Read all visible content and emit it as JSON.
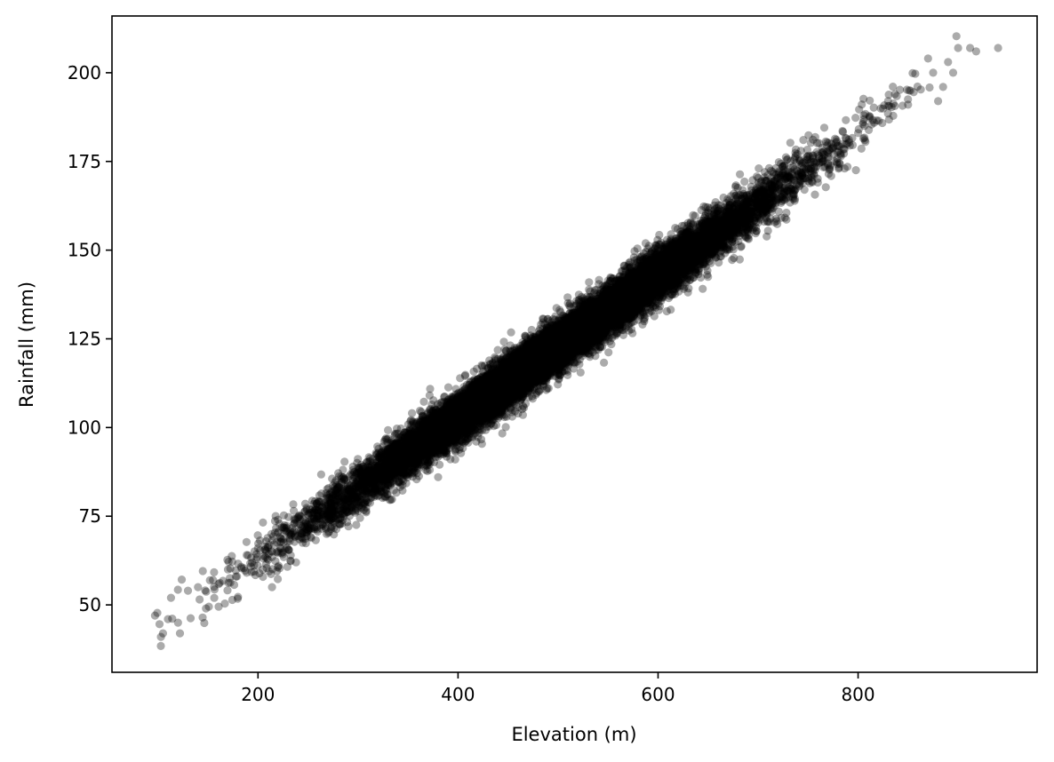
{
  "chart_data": {
    "type": "scatter",
    "title": "",
    "xlabel": "Elevation (m)",
    "ylabel": "Rainfall (mm)",
    "xlim": [
      54,
      979
    ],
    "ylim": [
      31,
      216
    ],
    "xticks": [
      200,
      400,
      600,
      800
    ],
    "yticks": [
      50,
      75,
      100,
      125,
      150,
      175,
      200
    ],
    "grid": false,
    "legend": "none",
    "marker_color": "#000000",
    "marker_opacity": 0.33,
    "series": [
      {
        "trend": {
          "slope": 0.2,
          "intercept": 23,
          "y_spread_sd": 3.5
        },
        "x_distribution": {
          "mean": 500,
          "sd": 110,
          "min": 95,
          "max": 940
        },
        "n_points": 16000,
        "sample_points": [
          [
            97,
            47
          ],
          [
            103,
            41
          ],
          [
            105,
            42
          ],
          [
            110,
            46
          ],
          [
            113,
            52
          ],
          [
            120,
            45
          ],
          [
            122,
            42
          ],
          [
            130,
            54
          ],
          [
            140,
            55
          ],
          [
            148,
            49
          ],
          [
            155,
            57
          ],
          [
            170,
            60
          ],
          [
            190,
            64
          ],
          [
            200,
            66
          ],
          [
            214,
            55
          ],
          [
            220,
            74
          ],
          [
            250,
            71
          ],
          [
            300,
            83
          ],
          [
            350,
            92
          ],
          [
            400,
            103
          ],
          [
            450,
            113
          ],
          [
            500,
            123
          ],
          [
            550,
            133
          ],
          [
            600,
            143
          ],
          [
            650,
            153
          ],
          [
            700,
            163
          ],
          [
            750,
            173
          ],
          [
            800,
            183
          ],
          [
            830,
            192
          ],
          [
            850,
            191
          ],
          [
            870,
            204
          ],
          [
            875,
            200
          ],
          [
            880,
            192
          ],
          [
            885,
            196
          ],
          [
            890,
            203
          ],
          [
            895,
            200
          ],
          [
            900,
            207
          ],
          [
            912,
            207
          ],
          [
            918,
            206
          ],
          [
            940,
            207
          ]
        ]
      }
    ]
  }
}
